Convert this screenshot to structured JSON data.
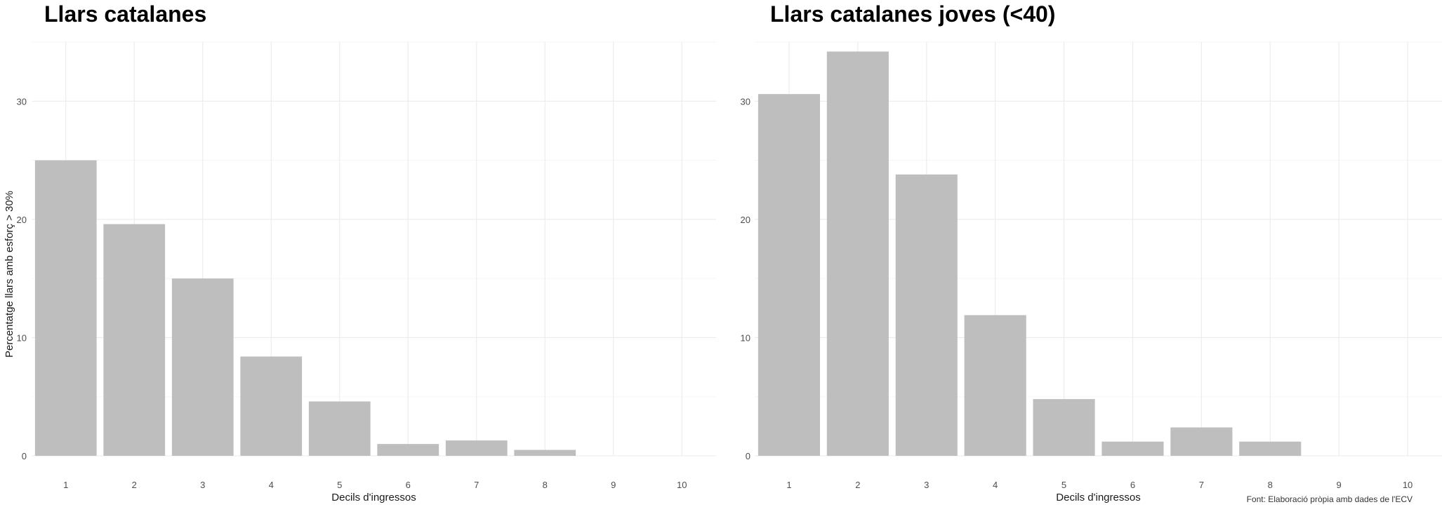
{
  "chart_data": [
    {
      "type": "bar",
      "title": "Llars catalanes",
      "xlabel": "Decils d'ingressos",
      "ylabel": "Percentatge llars amb esforç > 30%",
      "categories": [
        "1",
        "2",
        "3",
        "4",
        "5",
        "6",
        "7",
        "8",
        "9",
        "10"
      ],
      "values": [
        25.0,
        19.6,
        15.0,
        8.4,
        4.6,
        1.0,
        1.3,
        0.5,
        0,
        0
      ],
      "ylim": [
        0,
        35
      ],
      "yticks": [
        "0",
        "10",
        "20",
        "30"
      ],
      "grid": true,
      "bar_color": "#bebebe"
    },
    {
      "type": "bar",
      "title": "Llars catalanes joves (<40)",
      "xlabel": "Decils d'ingressos",
      "ylabel": "",
      "categories": [
        "1",
        "2",
        "3",
        "4",
        "5",
        "6",
        "7",
        "8",
        "9",
        "10"
      ],
      "values": [
        30.6,
        34.2,
        23.8,
        11.9,
        4.8,
        1.2,
        2.4,
        1.2,
        0,
        0
      ],
      "ylim": [
        0,
        35
      ],
      "yticks": [
        "0",
        "10",
        "20",
        "30"
      ],
      "grid": true,
      "bar_color": "#bebebe"
    }
  ],
  "caption": "Font: Elaboració pròpia amb dades de l'ECV"
}
